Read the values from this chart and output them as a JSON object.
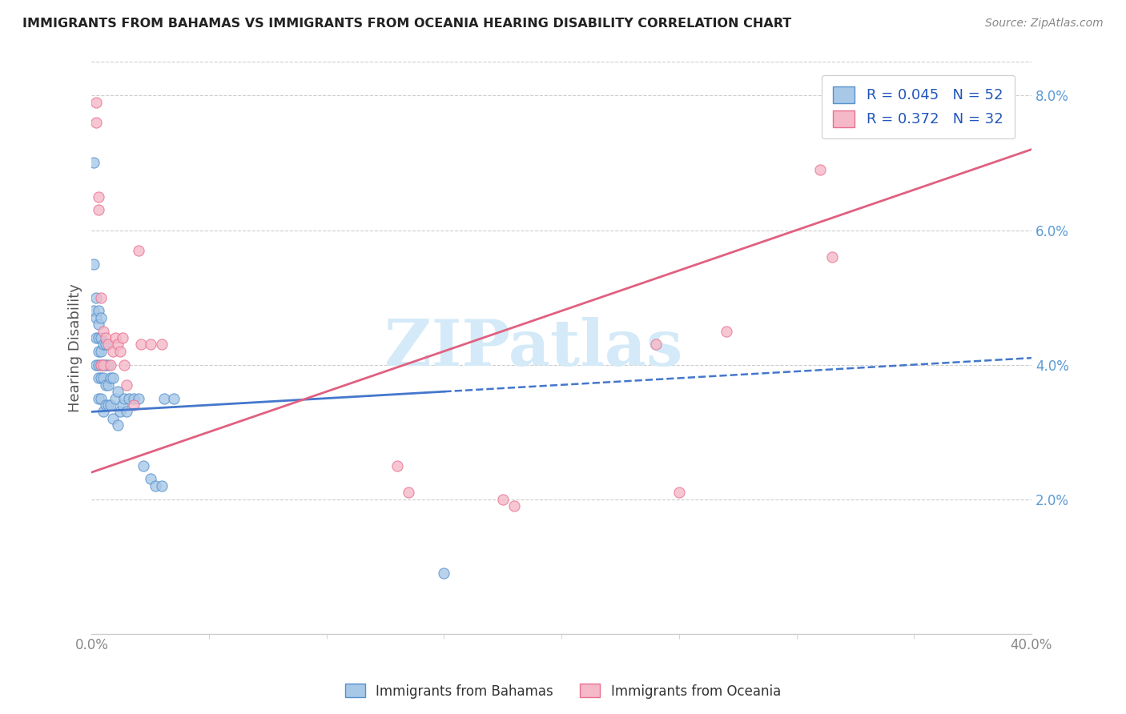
{
  "title": "IMMIGRANTS FROM BAHAMAS VS IMMIGRANTS FROM OCEANIA HEARING DISABILITY CORRELATION CHART",
  "source": "Source: ZipAtlas.com",
  "ylabel": "Hearing Disability",
  "xlim": [
    0.0,
    0.4
  ],
  "ylim": [
    0.0,
    0.085
  ],
  "y_ticks_right": [
    0.02,
    0.04,
    0.06,
    0.08
  ],
  "y_tick_labels_right": [
    "2.0%",
    "4.0%",
    "6.0%",
    "8.0%"
  ],
  "x_tick_left_label": "0.0%",
  "x_tick_right_label": "40.0%",
  "bahamas_R": 0.045,
  "bahamas_N": 52,
  "oceania_R": 0.372,
  "oceania_N": 32,
  "bahamas_color": "#a8c8e8",
  "oceania_color": "#f5b8c8",
  "bahamas_edge_color": "#5590cc",
  "oceania_edge_color": "#e87090",
  "trend_blue_color": "#4477cc",
  "trend_pink_color": "#e06080",
  "watermark_color": "#d4eaf8",
  "watermark_text": "ZIPatlas",
  "legend_label_bahamas": "Immigrants from Bahamas",
  "legend_label_oceania": "Immigrants from Oceania",
  "legend_text_color": "#2255bb",
  "tick_color": "#888888",
  "grid_color": "#cccccc",
  "title_color": "#222222",
  "source_color": "#888888",
  "ylabel_color": "#555555",
  "bahamas_x": [
    0.001,
    0.001,
    0.001,
    0.002,
    0.002,
    0.002,
    0.002,
    0.003,
    0.003,
    0.003,
    0.003,
    0.003,
    0.003,
    0.003,
    0.004,
    0.004,
    0.004,
    0.004,
    0.004,
    0.004,
    0.005,
    0.005,
    0.005,
    0.005,
    0.006,
    0.006,
    0.006,
    0.006,
    0.007,
    0.007,
    0.007,
    0.008,
    0.008,
    0.009,
    0.009,
    0.01,
    0.011,
    0.011,
    0.012,
    0.013,
    0.014,
    0.015,
    0.016,
    0.018,
    0.02,
    0.022,
    0.025,
    0.027,
    0.03,
    0.031,
    0.035,
    0.15
  ],
  "bahamas_y": [
    0.07,
    0.055,
    0.048,
    0.05,
    0.047,
    0.044,
    0.04,
    0.048,
    0.046,
    0.044,
    0.042,
    0.04,
    0.038,
    0.035,
    0.047,
    0.044,
    0.042,
    0.04,
    0.038,
    0.035,
    0.043,
    0.04,
    0.038,
    0.033,
    0.043,
    0.04,
    0.037,
    0.034,
    0.04,
    0.037,
    0.034,
    0.038,
    0.034,
    0.038,
    0.032,
    0.035,
    0.036,
    0.031,
    0.033,
    0.034,
    0.035,
    0.033,
    0.035,
    0.035,
    0.035,
    0.025,
    0.023,
    0.022,
    0.022,
    0.035,
    0.035,
    0.009
  ],
  "oceania_x": [
    0.002,
    0.002,
    0.003,
    0.003,
    0.004,
    0.004,
    0.005,
    0.005,
    0.006,
    0.007,
    0.008,
    0.009,
    0.01,
    0.011,
    0.012,
    0.013,
    0.014,
    0.015,
    0.018,
    0.02,
    0.021,
    0.025,
    0.03,
    0.13,
    0.135,
    0.175,
    0.18,
    0.24,
    0.25,
    0.27,
    0.31,
    0.315
  ],
  "oceania_y": [
    0.079,
    0.076,
    0.065,
    0.063,
    0.05,
    0.04,
    0.045,
    0.04,
    0.044,
    0.043,
    0.04,
    0.042,
    0.044,
    0.043,
    0.042,
    0.044,
    0.04,
    0.037,
    0.034,
    0.057,
    0.043,
    0.043,
    0.043,
    0.025,
    0.021,
    0.02,
    0.019,
    0.043,
    0.021,
    0.045,
    0.069,
    0.056
  ]
}
